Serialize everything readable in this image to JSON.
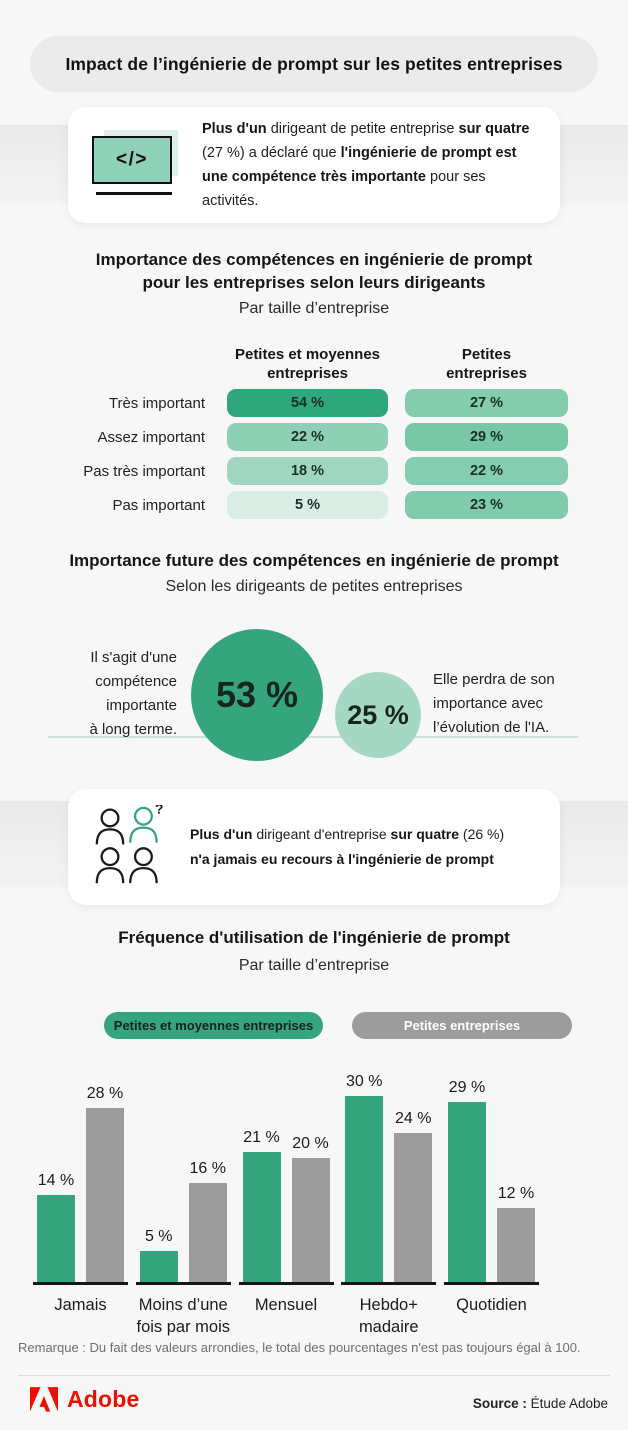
{
  "page": {
    "title": "Impact de l’ingénierie de prompt sur les petites entreprises"
  },
  "colors": {
    "green": "#35a57e",
    "gray": "#9c9c9c",
    "small_circle_green": "#a5d8c4",
    "adobe_red": "#eb1000"
  },
  "callout_code": {
    "icon_glyph": "</>",
    "b1": "Plus d'un",
    "t1": " dirigeant de petite entreprise ",
    "b2": "sur quatre",
    "t2": " (27 %) a déclaré que ",
    "b3": "l'ingénierie de prompt est une compétence très importante",
    "t3": " pour ses activités."
  },
  "section_importance": {
    "title": "Importance des compétences en ingénierie de prompt\npour les entreprises selon leurs dirigeants",
    "subtitle": "Par taille d’entreprise",
    "columns": [
      "Petites et moyennes\nentreprises",
      "Petites\nentreprises"
    ],
    "rows": [
      {
        "label": "Très important",
        "v1": "54 %",
        "v1_color": "#2ea77c",
        "v2": "27 %",
        "v2_color": "#83ccae"
      },
      {
        "label": "Assez important",
        "v1": "22 %",
        "v1_color": "#8dd0b4",
        "v2": "29 %",
        "v2_color": "#78c7a7"
      },
      {
        "label": "Pas très important",
        "v1": "18 %",
        "v1_color": "#a0d6bf",
        "v2": "22 %",
        "v2_color": "#85cdb0"
      },
      {
        "label": "Pas important",
        "v1": "5 %",
        "v1_color": "#d9efe5",
        "v2": "23 %",
        "v2_color": "#80cbac"
      }
    ]
  },
  "section_future": {
    "title": "Importance future des compétences en ingénierie de prompt",
    "subtitle": "Selon les dirigeants de petites entreprises",
    "big_circle": {
      "value": "53 %",
      "color": "#35a57e",
      "label": "Il s'agit d'une\ncompétence\nimportante\nà long terme."
    },
    "small_circle": {
      "value": "25 %",
      "color": "#a5d8c4",
      "label": "Elle perdra de son\nimportance avec\nl’évolution de l'IA."
    }
  },
  "callout_people": {
    "question_mark": "?",
    "b1": "Plus d'un",
    "t1": " dirigeant d'entreprise ",
    "b2": "sur quatre",
    "t2": " (26 %)",
    "b3": "n'a jamais eu recours à l'ingénierie de prompt"
  },
  "section_frequency": {
    "title": "Fréquence d'utilisation de l'ingénierie de prompt",
    "subtitle": "Par taille d’entreprise",
    "legend": [
      {
        "label": "Petites et moyennes entreprises",
        "color": "#35a57e"
      },
      {
        "label": "Petites entreprises",
        "color": "#9c9c9c"
      }
    ],
    "groups": [
      {
        "category": "Jamais",
        "green": 14,
        "green_label": "14 %",
        "gray": 28,
        "gray_label": "28 %"
      },
      {
        "category": "Moins d’une\nfois par mois",
        "green": 5,
        "green_label": "5 %",
        "gray": 16,
        "gray_label": "16 %"
      },
      {
        "category": "Mensuel",
        "green": 21,
        "green_label": "21 %",
        "gray": 20,
        "gray_label": "20 %"
      },
      {
        "category": "Hebdo+\nmadaire",
        "green": 30,
        "green_label": "30 %",
        "gray": 24,
        "gray_label": "24 %"
      },
      {
        "category": "Quotidien",
        "green": 29,
        "green_label": "29 %",
        "gray": 12,
        "gray_label": "12 %"
      }
    ]
  },
  "note": "Remarque : Du fait des valeurs arrondies, le total des pourcentages n'est pas toujours égal à 100.",
  "footer": {
    "brand": "Adobe",
    "source_label": "Source :",
    "source_value": " Étude Adobe"
  },
  "chart_data": [
    {
      "type": "table",
      "title": "Importance des compétences en ingénierie de prompt pour les entreprises selon leurs dirigeants",
      "subtitle": "Par taille d’entreprise",
      "columns": [
        "Petites et moyennes entreprises",
        "Petites entreprises"
      ],
      "rows": [
        [
          "Très important",
          54,
          27
        ],
        [
          "Assez important",
          22,
          29
        ],
        [
          "Pas très important",
          18,
          22
        ],
        [
          "Pas important",
          5,
          23
        ]
      ],
      "unit": "%"
    },
    {
      "type": "pie",
      "title": "Importance future des compétences en ingénierie de prompt",
      "subtitle": "Selon les dirigeants de petites entreprises",
      "labels": [
        "Il s'agit d'une compétence importante à long terme.",
        "Elle perdra de son importance avec l’évolution de l'IA."
      ],
      "values": [
        53,
        25
      ],
      "unit": "%",
      "note": "rendu sous forme de cercles proportionnels"
    },
    {
      "type": "bar",
      "title": "Fréquence d'utilisation de l'ingénierie de prompt",
      "subtitle": "Par taille d’entreprise",
      "categories": [
        "Jamais",
        "Moins d’une fois par mois",
        "Mensuel",
        "Hebdomadaire",
        "Quotidien"
      ],
      "series": [
        {
          "name": "Petites et moyennes entreprises",
          "color": "#35a57e",
          "values": [
            14,
            5,
            21,
            30,
            29
          ]
        },
        {
          "name": "Petites entreprises",
          "color": "#9c9c9c",
          "values": [
            28,
            16,
            20,
            24,
            12
          ]
        }
      ],
      "unit": "%",
      "ylim": [
        0,
        30
      ],
      "grid": false,
      "legend_position": "top",
      "data_labels": true
    }
  ]
}
